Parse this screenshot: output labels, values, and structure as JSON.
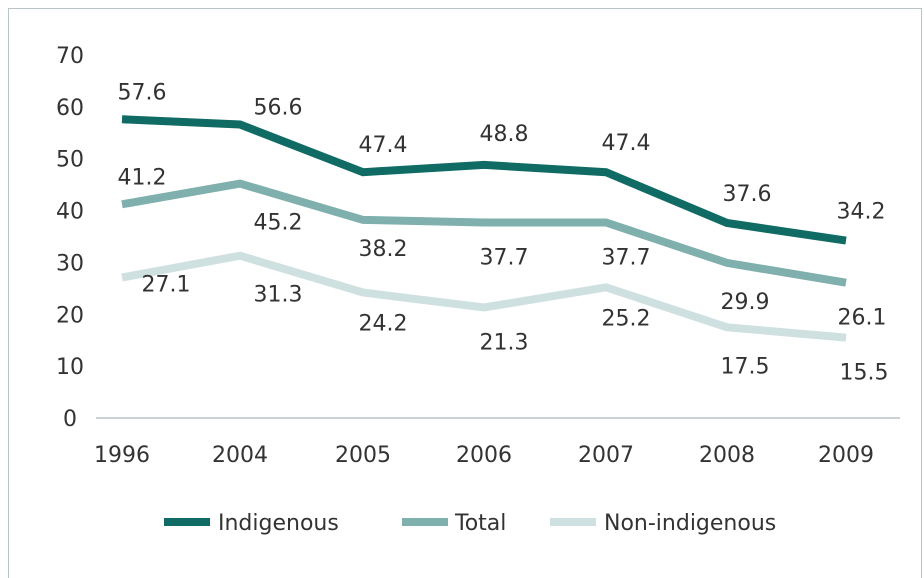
{
  "chart_data": {
    "type": "line",
    "categories": [
      "1996",
      "2004",
      "2005",
      "2006",
      "2007",
      "2008",
      "2009"
    ],
    "ylim": [
      0,
      70
    ],
    "yticks": [
      0,
      10,
      20,
      30,
      40,
      50,
      60,
      70
    ],
    "grid": false,
    "legend_position": "bottom",
    "series": [
      {
        "name": "Indigenous",
        "color": "#0f6b63",
        "values": [
          57.6,
          56.6,
          47.4,
          48.8,
          47.4,
          37.6,
          34.2
        ],
        "labels": [
          "57.6",
          "56.6",
          "47.4",
          "48.8",
          "47.4",
          "37.6",
          "34.2"
        ]
      },
      {
        "name": "Total",
        "color": "#7fb0ad",
        "values": [
          41.2,
          45.2,
          38.2,
          37.7,
          37.7,
          29.9,
          26.1
        ],
        "labels": [
          "41.2",
          "45.2",
          "38.2",
          "37.7",
          "37.7",
          "29.9",
          "26.1"
        ]
      },
      {
        "name": "Non-indigenous",
        "color": "#cfe0e1",
        "values": [
          27.1,
          31.3,
          24.2,
          21.3,
          25.2,
          17.5,
          15.5
        ],
        "labels": [
          "27.1",
          "31.3",
          "24.2",
          "21.3",
          "25.2",
          "17.5",
          "15.5"
        ]
      }
    ]
  }
}
